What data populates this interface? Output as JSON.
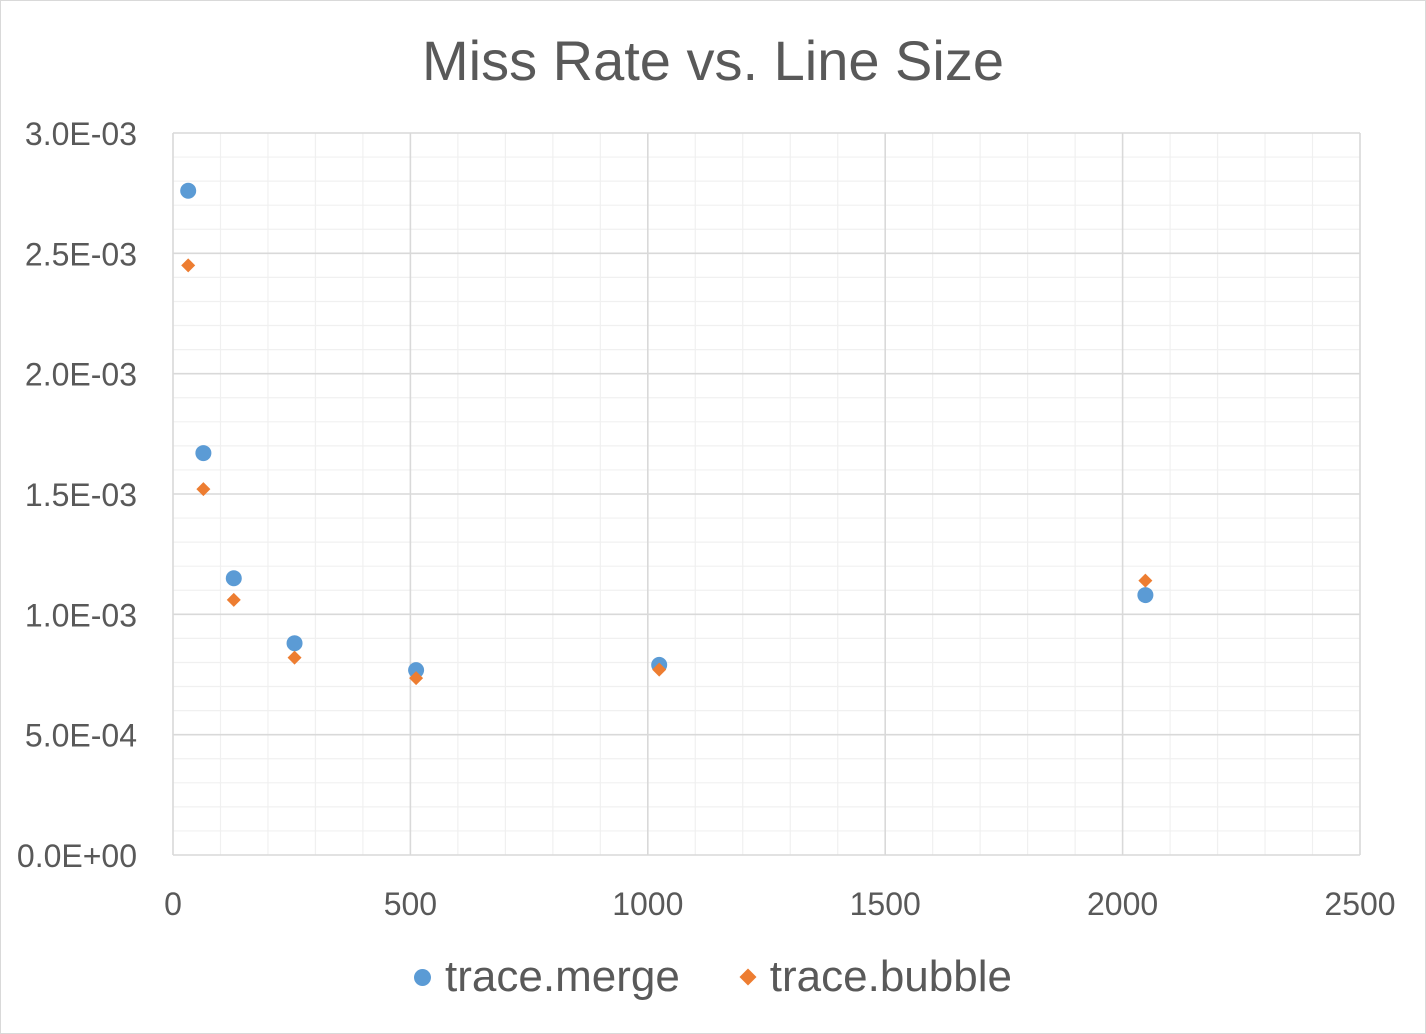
{
  "chart_data": {
    "type": "scatter",
    "title": "Miss Rate vs. Line Size",
    "xlabel": "",
    "ylabel": "",
    "xlim": [
      0,
      2500
    ],
    "ylim": [
      0,
      0.003
    ],
    "x_ticks": [
      "0",
      "500",
      "1000",
      "1500",
      "2000",
      "2500"
    ],
    "y_ticks": [
      "0.0E+00",
      "5.0E-04",
      "1.0E-03",
      "1.5E-03",
      "2.0E-03",
      "2.5E-03",
      "3.0E-03"
    ],
    "grid": true,
    "legend_position": "bottom",
    "series": [
      {
        "name": "trace.merge",
        "marker": "circle",
        "color": "#5b9bd5",
        "x": [
          32,
          64,
          128,
          256,
          512,
          1024,
          2048
        ],
        "y": [
          0.00276,
          0.00167,
          0.00115,
          0.00088,
          0.000768,
          0.00079,
          0.00108
        ]
      },
      {
        "name": "trace.bubble",
        "marker": "diamond",
        "color": "#ed7d31",
        "x": [
          32,
          64,
          128,
          256,
          512,
          1024,
          2048
        ],
        "y": [
          0.00245,
          0.00152,
          0.00106,
          0.00082,
          0.000735,
          0.00077,
          0.00114
        ]
      }
    ]
  }
}
